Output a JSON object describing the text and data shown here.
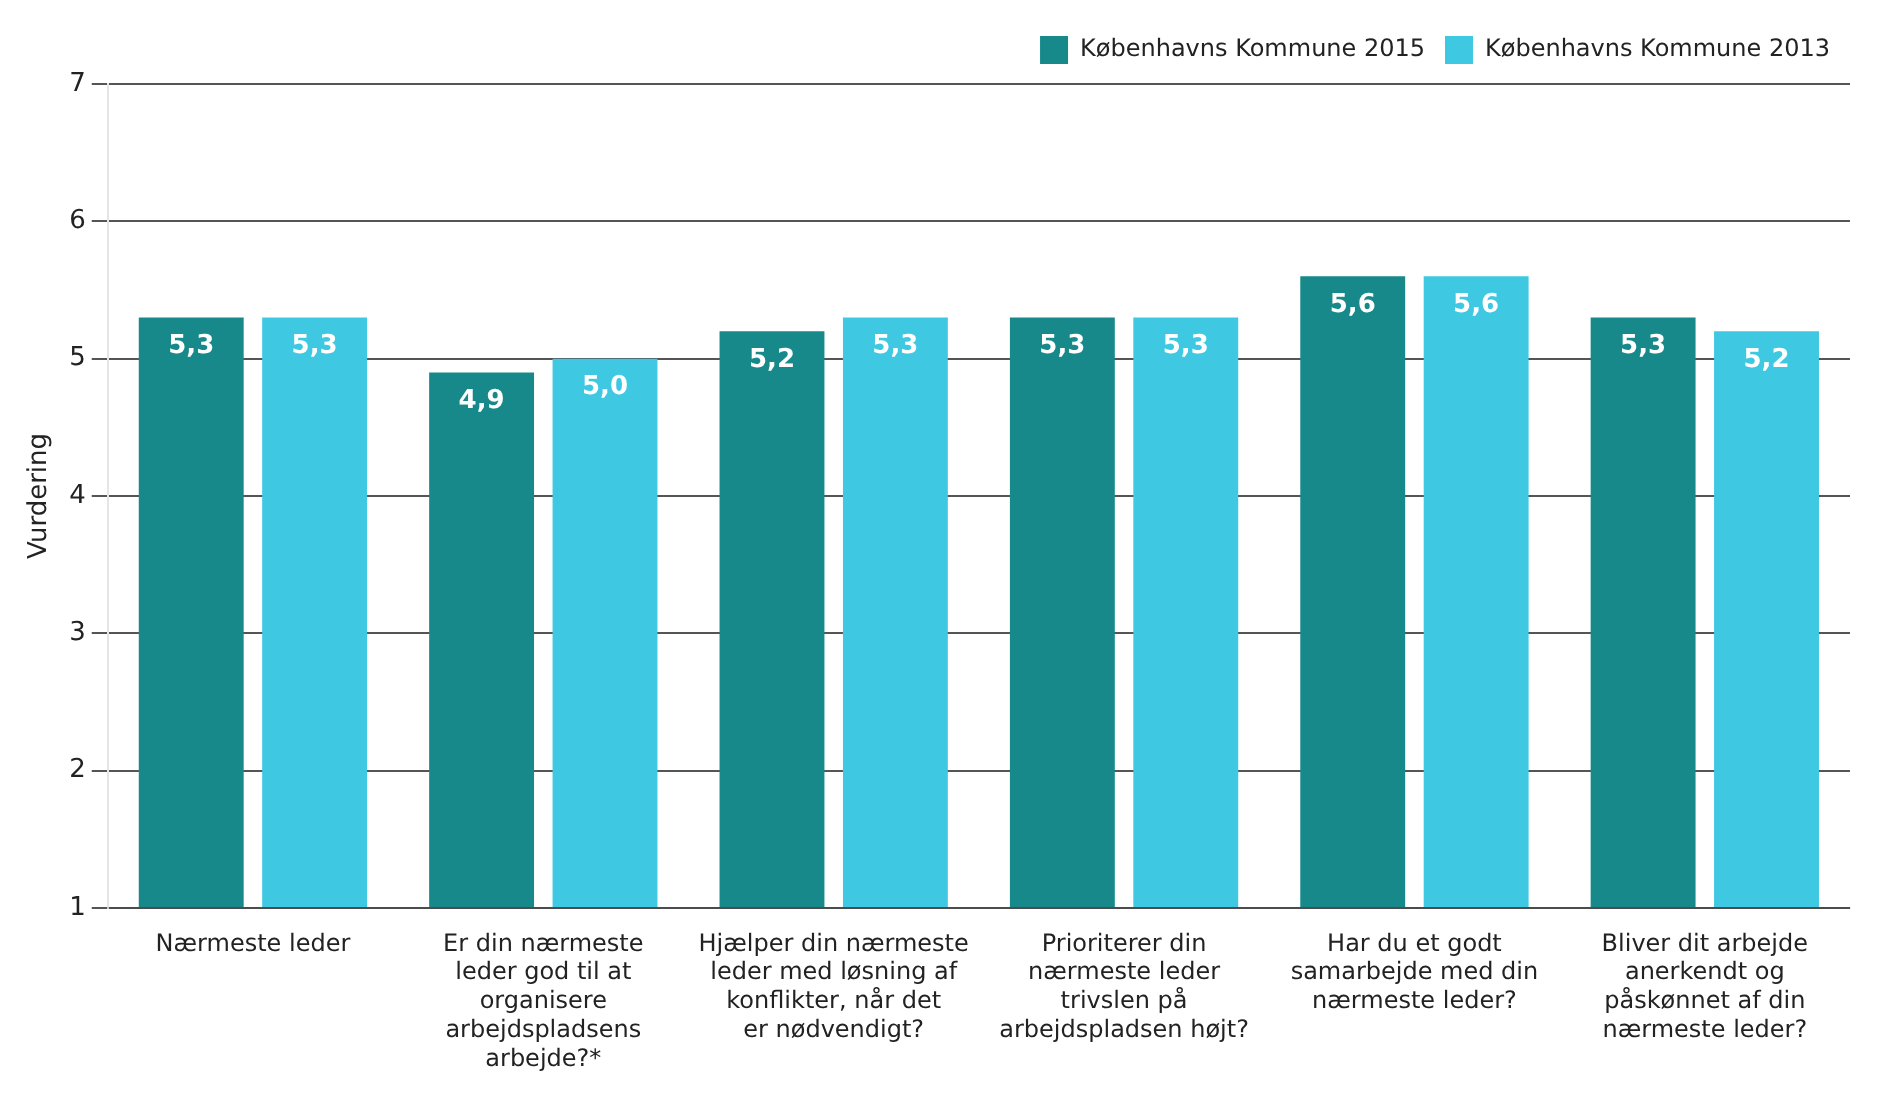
{
  "chart_data": {
    "type": "bar",
    "ylabel": "Vurdering",
    "categories": [
      "Nærmeste leder",
      "Er din nærmeste leder god til at organisere arbejdspladsens arbejde?*",
      "Hjælper din nærmeste leder med løsning af konflikter, når det er nødvendigt?",
      "Prioriterer din nærmeste leder trivslen på arbejdspladsen højt?",
      "Har du et godt samarbejde med din nærmeste leder?",
      "Bliver dit arbejde anerkendt og påskønnet af din nærmeste leder?"
    ],
    "series": [
      {
        "name": "Københavns Kommune 2015",
        "color": "#17898a",
        "values": [
          5.3,
          4.9,
          5.2,
          5.3,
          5.6,
          5.3
        ],
        "value_labels": [
          "5,3",
          "4,9",
          "5,2",
          "5,3",
          "5,6",
          "5,3"
        ]
      },
      {
        "name": "Københavns Kommune 2013",
        "color": "#3ec8e2",
        "values": [
          5.3,
          5.0,
          5.3,
          5.3,
          5.6,
          5.2
        ],
        "value_labels": [
          "5,3",
          "5,0",
          "5,3",
          "5,3",
          "5,6",
          "5,2"
        ]
      }
    ],
    "ylim": [
      1,
      7
    ],
    "yticks": [
      1,
      2,
      3,
      4,
      5,
      6,
      7
    ],
    "grid": "y",
    "legend": "top right"
  }
}
